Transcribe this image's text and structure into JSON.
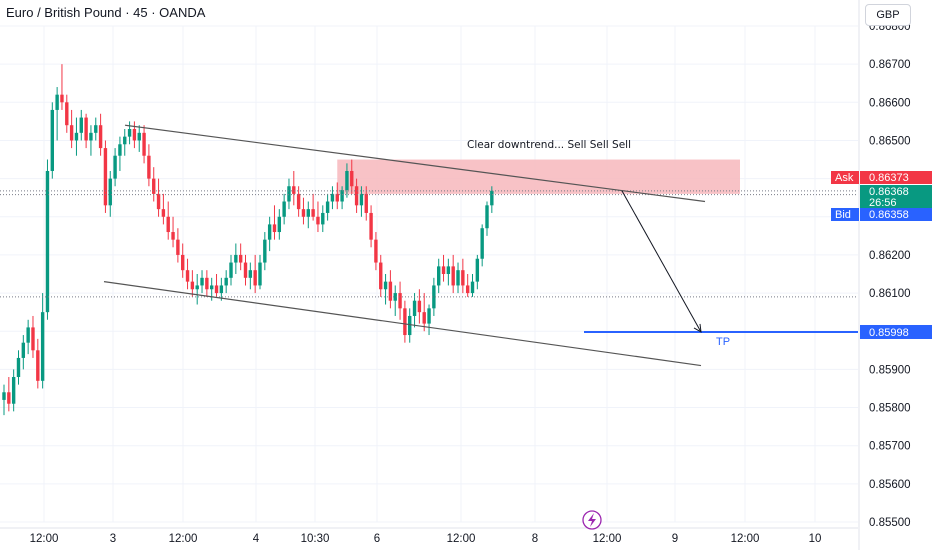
{
  "header": {
    "title": "Euro / British Pound · 45 · OANDA",
    "currency_button": "GBP"
  },
  "colors": {
    "up": "#089981",
    "down": "#f23645",
    "ask": "#f23645",
    "bid": "#2962ff",
    "last": "#089981",
    "zone": "#f7b7bc",
    "tp_line": "#2962ff",
    "trend": "#555555"
  },
  "chart_data": {
    "type": "candlestick",
    "symbol": "EURGBP",
    "interval": "45",
    "source": "OANDA",
    "ylim": [
      0.855,
      0.868
    ],
    "y_ticks": [
      "0.86800",
      "0.86700",
      "0.86600",
      "0.86500",
      "0.86400",
      "0.86300",
      "0.86200",
      "0.86100",
      "0.86000",
      "0.85900",
      "0.85800",
      "0.85700",
      "0.85600",
      "0.85500"
    ],
    "x_ticks": [
      "12:00",
      "3",
      "12:00",
      "4",
      "10:30",
      "6",
      "12:00",
      "8",
      "12:00",
      "9",
      "12:00",
      "10"
    ],
    "candles": [
      [
        0.8582,
        0.8586,
        0.8578,
        0.8584
      ],
      [
        0.8584,
        0.8588,
        0.8579,
        0.8581
      ],
      [
        0.8581,
        0.859,
        0.8579,
        0.8588
      ],
      [
        0.8588,
        0.8595,
        0.8586,
        0.8593
      ],
      [
        0.8593,
        0.8599,
        0.859,
        0.8597
      ],
      [
        0.8597,
        0.8603,
        0.8594,
        0.8601
      ],
      [
        0.8601,
        0.8604,
        0.8593,
        0.8595
      ],
      [
        0.8595,
        0.8598,
        0.8585,
        0.8587
      ],
      [
        0.8587,
        0.861,
        0.8585,
        0.8605
      ],
      [
        0.8605,
        0.8645,
        0.8603,
        0.8642
      ],
      [
        0.8642,
        0.866,
        0.864,
        0.8658
      ],
      [
        0.8658,
        0.8664,
        0.865,
        0.8662
      ],
      [
        0.8662,
        0.867,
        0.8658,
        0.866
      ],
      [
        0.866,
        0.8662,
        0.8652,
        0.8654
      ],
      [
        0.8654,
        0.8658,
        0.8648,
        0.865
      ],
      [
        0.865,
        0.8656,
        0.8646,
        0.8652
      ],
      [
        0.8652,
        0.8658,
        0.865,
        0.8656
      ],
      [
        0.8656,
        0.8657,
        0.8648,
        0.865
      ],
      [
        0.865,
        0.8654,
        0.8646,
        0.8652
      ],
      [
        0.8652,
        0.8656,
        0.865,
        0.8654
      ],
      [
        0.8654,
        0.8657,
        0.8646,
        0.8648
      ],
      [
        0.8648,
        0.865,
        0.8631,
        0.8633
      ],
      [
        0.8633,
        0.8642,
        0.863,
        0.864
      ],
      [
        0.864,
        0.8648,
        0.8638,
        0.8646
      ],
      [
        0.8646,
        0.8651,
        0.8642,
        0.8649
      ],
      [
        0.8649,
        0.8653,
        0.8646,
        0.8651
      ],
      [
        0.8651,
        0.8655,
        0.8649,
        0.8653
      ],
      [
        0.8653,
        0.8655,
        0.8648,
        0.865
      ],
      [
        0.865,
        0.8654,
        0.8647,
        0.8652
      ],
      [
        0.8652,
        0.8654,
        0.8644,
        0.8646
      ],
      [
        0.8646,
        0.8649,
        0.8638,
        0.864
      ],
      [
        0.864,
        0.8643,
        0.8634,
        0.8636
      ],
      [
        0.8636,
        0.864,
        0.863,
        0.8632
      ],
      [
        0.8632,
        0.8636,
        0.8628,
        0.863
      ],
      [
        0.863,
        0.8634,
        0.8624,
        0.8626
      ],
      [
        0.8626,
        0.863,
        0.8622,
        0.8624
      ],
      [
        0.8624,
        0.8627,
        0.8618,
        0.862
      ],
      [
        0.862,
        0.8623,
        0.8614,
        0.8616
      ],
      [
        0.8616,
        0.8619,
        0.8611,
        0.8613
      ],
      [
        0.8613,
        0.8616,
        0.8609,
        0.8611
      ],
      [
        0.8611,
        0.8615,
        0.8607,
        0.8612
      ],
      [
        0.8612,
        0.8616,
        0.861,
        0.8614
      ],
      [
        0.8614,
        0.8616,
        0.8609,
        0.8611
      ],
      [
        0.8611,
        0.8614,
        0.8608,
        0.8612
      ],
      [
        0.8612,
        0.8615,
        0.8609,
        0.861
      ],
      [
        0.861,
        0.8614,
        0.8608,
        0.8612
      ],
      [
        0.8612,
        0.8616,
        0.861,
        0.8614
      ],
      [
        0.8614,
        0.862,
        0.8612,
        0.8618
      ],
      [
        0.8618,
        0.8623,
        0.8615,
        0.862
      ],
      [
        0.862,
        0.8623,
        0.8616,
        0.8618
      ],
      [
        0.8618,
        0.862,
        0.8612,
        0.8614
      ],
      [
        0.8614,
        0.8618,
        0.8611,
        0.8616
      ],
      [
        0.8616,
        0.862,
        0.861,
        0.8612
      ],
      [
        0.8612,
        0.862,
        0.8611,
        0.8618
      ],
      [
        0.8618,
        0.8626,
        0.8616,
        0.8624
      ],
      [
        0.8624,
        0.863,
        0.8621,
        0.8628
      ],
      [
        0.8628,
        0.8633,
        0.8624,
        0.8626
      ],
      [
        0.8626,
        0.8632,
        0.8624,
        0.863
      ],
      [
        0.863,
        0.8636,
        0.8628,
        0.8634
      ],
      [
        0.8634,
        0.864,
        0.8632,
        0.8638
      ],
      [
        0.8638,
        0.8642,
        0.8633,
        0.8636
      ],
      [
        0.8636,
        0.8638,
        0.863,
        0.8632
      ],
      [
        0.8632,
        0.8635,
        0.8628,
        0.863
      ],
      [
        0.863,
        0.8634,
        0.8627,
        0.8632
      ],
      [
        0.8632,
        0.8636,
        0.8629,
        0.863
      ],
      [
        0.863,
        0.8634,
        0.8626,
        0.8628
      ],
      [
        0.8628,
        0.8633,
        0.8626,
        0.8631
      ],
      [
        0.8631,
        0.8636,
        0.8629,
        0.8634
      ],
      [
        0.8634,
        0.8638,
        0.8632,
        0.8636
      ],
      [
        0.8636,
        0.8639,
        0.8632,
        0.8634
      ],
      [
        0.8634,
        0.8638,
        0.8632,
        0.8637
      ],
      [
        0.8637,
        0.8644,
        0.8635,
        0.8642
      ],
      [
        0.8642,
        0.8645,
        0.8636,
        0.8638
      ],
      [
        0.8638,
        0.864,
        0.8631,
        0.8633
      ],
      [
        0.8633,
        0.8638,
        0.863,
        0.8636
      ],
      [
        0.8636,
        0.8638,
        0.8629,
        0.8631
      ],
      [
        0.8631,
        0.8633,
        0.8622,
        0.8624
      ],
      [
        0.8624,
        0.8626,
        0.8616,
        0.8618
      ],
      [
        0.8618,
        0.862,
        0.8609,
        0.8611
      ],
      [
        0.8611,
        0.8615,
        0.8607,
        0.8613
      ],
      [
        0.8613,
        0.8616,
        0.8606,
        0.8608
      ],
      [
        0.8608,
        0.8612,
        0.8604,
        0.861
      ],
      [
        0.861,
        0.8613,
        0.8603,
        0.8606
      ],
      [
        0.8606,
        0.8608,
        0.8597,
        0.8599
      ],
      [
        0.8599,
        0.8606,
        0.8597,
        0.8604
      ],
      [
        0.8604,
        0.861,
        0.8601,
        0.8608
      ],
      [
        0.8608,
        0.8611,
        0.8602,
        0.8605
      ],
      [
        0.8605,
        0.861,
        0.86,
        0.8602
      ],
      [
        0.8602,
        0.8607,
        0.8599,
        0.8606
      ],
      [
        0.8606,
        0.8614,
        0.8604,
        0.8612
      ],
      [
        0.8612,
        0.8619,
        0.861,
        0.8617
      ],
      [
        0.8617,
        0.862,
        0.8613,
        0.8615
      ],
      [
        0.8615,
        0.8619,
        0.8612,
        0.8617
      ],
      [
        0.8617,
        0.862,
        0.861,
        0.8612
      ],
      [
        0.8612,
        0.8618,
        0.861,
        0.8616
      ],
      [
        0.8616,
        0.8619,
        0.861,
        0.8612
      ],
      [
        0.8612,
        0.8615,
        0.8609,
        0.861
      ],
      [
        0.861,
        0.8615,
        0.8609,
        0.8613
      ],
      [
        0.8613,
        0.862,
        0.8611,
        0.8619
      ],
      [
        0.8619,
        0.8628,
        0.8617,
        0.8627
      ],
      [
        0.8627,
        0.8634,
        0.8625,
        0.8633
      ],
      [
        0.8633,
        0.8638,
        0.8631,
        0.86368
      ]
    ],
    "channel_upper": [
      [
        0.8654,
        5
      ],
      [
        0.8634,
        279
      ]
    ],
    "channel_lower": [
      [
        0.8613,
        5
      ],
      [
        0.8591,
        279
      ]
    ],
    "resistance_zone": {
      "from_index": 69,
      "to_index": 155,
      "low": 0.8636,
      "high": 0.8645
    },
    "projection_arrow": {
      "from": [
        129,
        0.86368
      ],
      "to": [
        148,
        0.85998
      ]
    },
    "dotted_lines": [
      0.86368,
      0.86358,
      0.8609
    ],
    "annotations": {
      "note": "Clear downtrend... Sell Sell Sell",
      "tp_label": "TP"
    },
    "price_tags": {
      "ask": {
        "label": "Ask",
        "price": "0.86373"
      },
      "last": {
        "price": "0.86368",
        "countdown": "26:56"
      },
      "bid": {
        "label": "Bid",
        "price": "0.86358"
      },
      "tp": {
        "price": "0.85998"
      }
    }
  }
}
